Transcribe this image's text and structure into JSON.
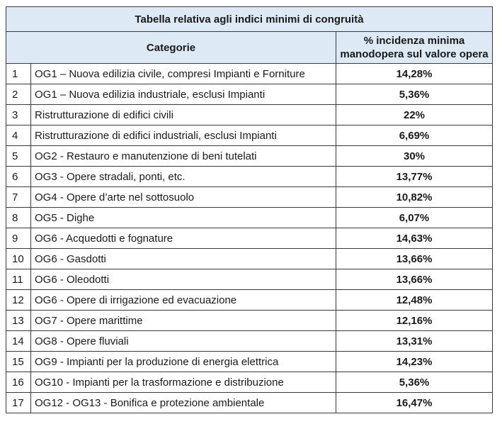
{
  "table": {
    "title": "Tabella relativa agli indici minimi di congruità",
    "header_categorie": "Categorie",
    "header_percent": "% incidenza minima manodopera sul valore opera",
    "rows": [
      {
        "num": "1",
        "categoria": "OG1 – Nuova edilizia civile, compresi Impianti e Forniture",
        "valore": "14,28%"
      },
      {
        "num": "2",
        "categoria": "OG1 – Nuova edilizia industriale, esclusi Impianti",
        "valore": "5,36%"
      },
      {
        "num": "3",
        "categoria": "Ristrutturazione di edifici civili",
        "valore": "22%"
      },
      {
        "num": "4",
        "categoria": "Ristrutturazione di edifici industriali, esclusi Impianti",
        "valore": "6,69%"
      },
      {
        "num": "5",
        "categoria": "OG2 - Restauro e manutenzione di beni tutelati",
        "valore": "30%"
      },
      {
        "num": "6",
        "categoria": "OG3 - Opere stradali, ponti, etc.",
        "valore": "13,77%"
      },
      {
        "num": "7",
        "categoria": "OG4 - Opere d’arte nel sottosuolo",
        "valore": "10,82%"
      },
      {
        "num": "8",
        "categoria": "OG5 - Dighe",
        "valore": "6,07%"
      },
      {
        "num": "9",
        "categoria": "OG6 - Acquedotti e fognature",
        "valore": "14,63%"
      },
      {
        "num": "10",
        "categoria": "OG6 - Gasdotti",
        "valore": "13,66%"
      },
      {
        "num": "11",
        "categoria": "OG6 - Oleodotti",
        "valore": "13,66%"
      },
      {
        "num": "12",
        "categoria": "OG6 - Opere di irrigazione ed evacuazione",
        "valore": "12,48%"
      },
      {
        "num": "13",
        "categoria": "OG7 - Opere marittime",
        "valore": "12,16%"
      },
      {
        "num": "14",
        "categoria": "OG8 - Opere fluviali",
        "valore": "13,31%"
      },
      {
        "num": "15",
        "categoria": "OG9 - Impianti per la produzione di energia elettrica",
        "valore": "14,23%"
      },
      {
        "num": "16",
        "categoria": "OG10 - Impianti per la trasformazione e distribuzione",
        "valore": "5,36%"
      },
      {
        "num": "17",
        "categoria": "OG12 - OG13 - Bonifica e protezione ambientale",
        "valore": "16,47%"
      }
    ]
  },
  "colors": {
    "header_bg": "#dde9f4",
    "border": "#3a3a3a"
  }
}
